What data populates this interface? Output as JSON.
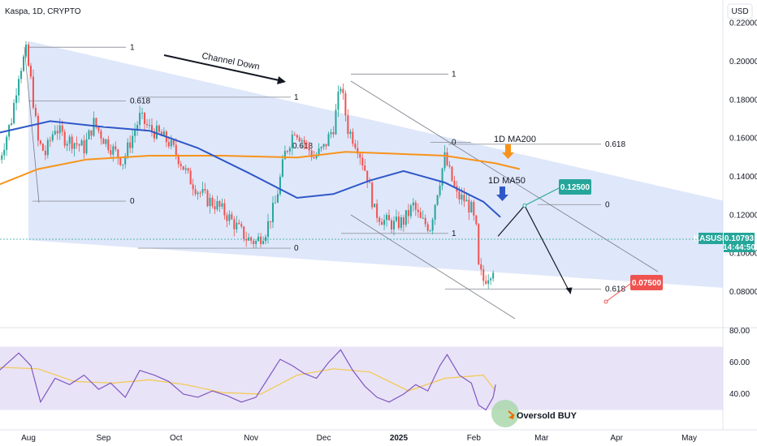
{
  "header": {
    "title": "Kaspa, 1D, CRYPTO",
    "currency": "USD"
  },
  "chart_data": {
    "type": "candlestick",
    "symbol": "KASUSD",
    "price_axis": {
      "ticks": [
        "0.22000",
        "0.20000",
        "0.18000",
        "0.16000",
        "0.14000",
        "0.12000",
        "0.10000",
        "0.08000"
      ],
      "ylim": [
        0.06,
        0.22
      ]
    },
    "time_axis": {
      "ticks": [
        "Aug",
        "Sep",
        "Oct",
        "Nov",
        "Dec",
        "2025",
        "Feb",
        "Mar",
        "Apr",
        "May"
      ]
    },
    "last_price": {
      "symbol": "KASUSD",
      "value": "0.10793",
      "countdown": "14:44:50"
    },
    "price_path": [
      [
        "2024-07-20",
        0.149
      ],
      [
        "2024-07-25",
        0.17
      ],
      [
        "2024-07-28",
        0.194
      ],
      [
        "2024-07-31",
        0.205
      ],
      [
        "2024-08-02",
        0.19
      ],
      [
        "2024-08-05",
        0.158
      ],
      [
        "2024-08-08",
        0.152
      ],
      [
        "2024-08-12",
        0.166
      ],
      [
        "2024-08-16",
        0.16
      ],
      [
        "2024-08-20",
        0.158
      ],
      [
        "2024-08-24",
        0.155
      ],
      [
        "2024-08-28",
        0.168
      ],
      [
        "2024-09-01",
        0.16
      ],
      [
        "2024-09-05",
        0.154
      ],
      [
        "2024-09-09",
        0.148
      ],
      [
        "2024-09-12",
        0.158
      ],
      [
        "2024-09-16",
        0.171
      ],
      [
        "2024-09-20",
        0.165
      ],
      [
        "2024-09-24",
        0.162
      ],
      [
        "2024-09-28",
        0.158
      ],
      [
        "2024-10-02",
        0.15
      ],
      [
        "2024-10-06",
        0.14
      ],
      [
        "2024-10-10",
        0.133
      ],
      [
        "2024-10-14",
        0.128
      ],
      [
        "2024-10-18",
        0.125
      ],
      [
        "2024-10-22",
        0.12
      ],
      [
        "2024-10-26",
        0.114
      ],
      [
        "2024-10-30",
        0.108
      ],
      [
        "2024-11-03",
        0.106
      ],
      [
        "2024-11-07",
        0.112
      ],
      [
        "2024-11-11",
        0.126
      ],
      [
        "2024-11-15",
        0.152
      ],
      [
        "2024-11-19",
        0.165
      ],
      [
        "2024-11-23",
        0.158
      ],
      [
        "2024-11-27",
        0.15
      ],
      [
        "2024-12-01",
        0.155
      ],
      [
        "2024-12-05",
        0.166
      ],
      [
        "2024-12-08",
        0.188
      ],
      [
        "2024-12-11",
        0.165
      ],
      [
        "2024-12-15",
        0.156
      ],
      [
        "2024-12-19",
        0.14
      ],
      [
        "2024-12-22",
        0.122
      ],
      [
        "2024-12-26",
        0.117
      ],
      [
        "2024-12-30",
        0.115
      ],
      [
        "2025-01-03",
        0.117
      ],
      [
        "2025-01-07",
        0.125
      ],
      [
        "2025-01-10",
        0.117
      ],
      [
        "2025-01-14",
        0.114
      ],
      [
        "2025-01-17",
        0.133
      ],
      [
        "2025-01-20",
        0.15
      ],
      [
        "2025-01-22",
        0.142
      ],
      [
        "2025-01-25",
        0.13
      ],
      [
        "2025-01-28",
        0.128
      ],
      [
        "2025-01-31",
        0.123
      ],
      [
        "2025-02-02",
        0.112
      ],
      [
        "2025-02-03",
        0.092
      ],
      [
        "2025-02-05",
        0.086
      ],
      [
        "2025-02-07",
        0.089
      ],
      [
        "2025-02-09",
        0.093
      ],
      [
        "2025-02-10",
        0.108
      ]
    ],
    "ma200": [
      [
        "2024-07-20",
        0.136
      ],
      [
        "2024-08-05",
        0.144
      ],
      [
        "2024-08-25",
        0.149
      ],
      [
        "2024-09-20",
        0.151
      ],
      [
        "2024-10-20",
        0.151
      ],
      [
        "2024-11-20",
        0.15
      ],
      [
        "2024-12-10",
        0.153
      ],
      [
        "2024-12-31",
        0.152
      ],
      [
        "2025-01-20",
        0.151
      ],
      [
        "2025-02-10",
        0.147
      ],
      [
        "2025-02-20",
        0.144
      ]
    ],
    "ma50": [
      [
        "2024-07-20",
        0.163
      ],
      [
        "2024-08-10",
        0.169
      ],
      [
        "2024-09-01",
        0.166
      ],
      [
        "2024-09-20",
        0.164
      ],
      [
        "2024-10-10",
        0.155
      ],
      [
        "2024-10-31",
        0.142
      ],
      [
        "2024-11-20",
        0.129
      ],
      [
        "2024-12-05",
        0.131
      ],
      [
        "2024-12-20",
        0.138
      ],
      [
        "2025-01-03",
        0.143
      ],
      [
        "2025-01-20",
        0.137
      ],
      [
        "2025-02-05",
        0.127
      ],
      [
        "2025-02-12",
        0.119
      ]
    ],
    "channel": {
      "label": "Channel Down",
      "top": [
        [
          "2024-07-31",
          0.211
        ],
        [
          "2025-05-10",
          0.129
        ]
      ],
      "bottom": [
        [
          "2024-07-31",
          0.107
        ],
        [
          "2025-03-20",
          0.087
        ]
      ]
    },
    "fib_labels": [
      "1",
      "0.618",
      "0",
      "1",
      "0.618",
      "0",
      "1",
      "0.618",
      "0"
    ],
    "projection": {
      "target_high": "0.12500",
      "target_low": "0.07500",
      "path": [
        [
          "2025-02-11",
          0.109
        ],
        [
          "2025-02-22",
          0.125
        ],
        [
          "2025-03-13",
          0.079
        ]
      ]
    },
    "annotations": {
      "ma200_label": "1D MA200",
      "ma50_label": "1D MA50",
      "oversold": "Oversold BUY"
    },
    "rsi": {
      "axis_ticks": [
        "80.00",
        "60.00",
        "40.00"
      ],
      "ylim": [
        15,
        90
      ],
      "band": [
        30,
        70
      ],
      "values": [
        [
          "2024-07-20",
          55
        ],
        [
          "2024-07-28",
          66
        ],
        [
          "2024-08-02",
          58
        ],
        [
          "2024-08-06",
          35
        ],
        [
          "2024-08-12",
          50
        ],
        [
          "2024-08-18",
          46
        ],
        [
          "2024-08-24",
          52
        ],
        [
          "2024-08-30",
          43
        ],
        [
          "2024-09-04",
          47
        ],
        [
          "2024-09-10",
          38
        ],
        [
          "2024-09-16",
          55
        ],
        [
          "2024-09-22",
          52
        ],
        [
          "2024-09-28",
          48
        ],
        [
          "2024-10-04",
          40
        ],
        [
          "2024-10-10",
          38
        ],
        [
          "2024-10-16",
          42
        ],
        [
          "2024-10-22",
          39
        ],
        [
          "2024-10-28",
          35
        ],
        [
          "2024-11-03",
          38
        ],
        [
          "2024-11-08",
          50
        ],
        [
          "2024-11-13",
          62
        ],
        [
          "2024-11-18",
          58
        ],
        [
          "2024-11-23",
          53
        ],
        [
          "2024-11-28",
          50
        ],
        [
          "2024-12-03",
          60
        ],
        [
          "2024-12-08",
          68
        ],
        [
          "2024-12-13",
          55
        ],
        [
          "2024-12-18",
          45
        ],
        [
          "2024-12-23",
          38
        ],
        [
          "2024-12-28",
          35
        ],
        [
          "2025-01-03",
          40
        ],
        [
          "2025-01-08",
          46
        ],
        [
          "2025-01-13",
          42
        ],
        [
          "2025-01-18",
          58
        ],
        [
          "2025-01-21",
          65
        ],
        [
          "2025-01-26",
          52
        ],
        [
          "2025-01-31",
          47
        ],
        [
          "2025-02-03",
          33
        ],
        [
          "2025-02-06",
          30
        ],
        [
          "2025-02-09",
          38
        ],
        [
          "2025-02-10",
          46
        ]
      ],
      "signal": [
        [
          "2024-07-20",
          57
        ],
        [
          "2024-08-05",
          56
        ],
        [
          "2024-08-20",
          48
        ],
        [
          "2024-09-05",
          47
        ],
        [
          "2024-09-20",
          49
        ],
        [
          "2024-10-05",
          46
        ],
        [
          "2024-10-20",
          41
        ],
        [
          "2024-11-05",
          40
        ],
        [
          "2024-11-20",
          52
        ],
        [
          "2024-12-05",
          56
        ],
        [
          "2024-12-20",
          54
        ],
        [
          "2025-01-05",
          42
        ],
        [
          "2025-01-20",
          50
        ],
        [
          "2025-02-05",
          52
        ],
        [
          "2025-02-10",
          42
        ]
      ]
    }
  }
}
